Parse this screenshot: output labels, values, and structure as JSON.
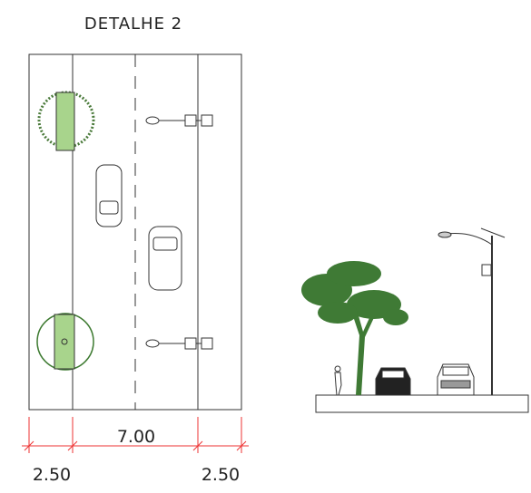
{
  "title": "DETALHE 2",
  "dimensions": {
    "center": "7.00",
    "left": "2.50",
    "right": "2.50"
  }
}
